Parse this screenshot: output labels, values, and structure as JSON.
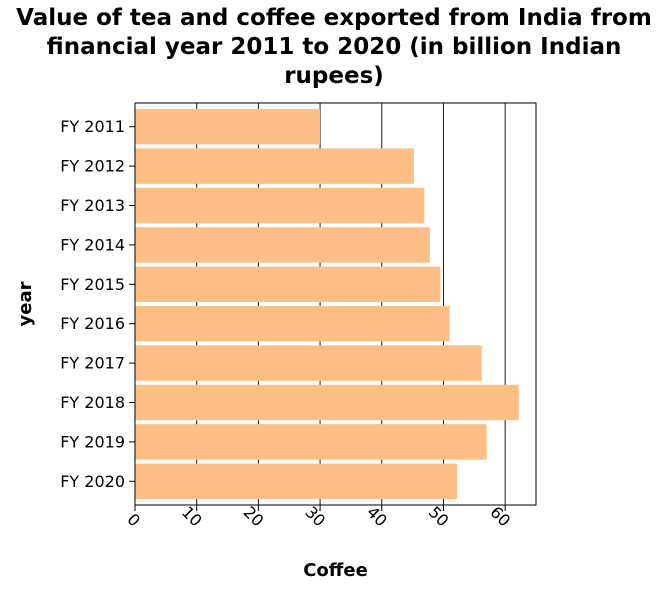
{
  "chart_data": {
    "type": "bar",
    "orientation": "horizontal",
    "title": "Value of tea and coffee exported from India from financial year 2011 to 2020 (in billion Indian rupees)",
    "xlabel": "Coffee",
    "ylabel": "year",
    "categories": [
      "FY 2011",
      "FY 2012",
      "FY 2013",
      "FY 2014",
      "FY 2015",
      "FY 2016",
      "FY 2017",
      "FY 2018",
      "FY 2019",
      "FY 2020"
    ],
    "values": [
      30,
      45.2,
      46.9,
      47.8,
      49.5,
      51,
      56.2,
      62.2,
      57,
      52.2
    ],
    "xlim": [
      0,
      65
    ],
    "xticks": [
      "0",
      "10",
      "20",
      "30",
      "40",
      "50",
      "60"
    ],
    "grid": "vertical",
    "bar_color": "#fdbf86",
    "grid_color": "#000000"
  }
}
